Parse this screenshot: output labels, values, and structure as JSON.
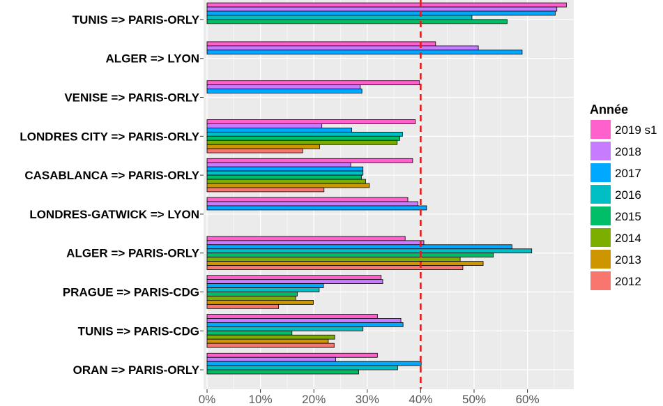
{
  "chart_data": {
    "type": "bar",
    "orientation": "horizontal",
    "categories": [
      "TUNIS => PARIS-ORLY",
      "ALGER => LYON",
      "VENISE => PARIS-ORLY",
      "LONDRES CITY => PARIS-ORLY",
      "CASABLANCA => PARIS-ORLY",
      "LONDRES-GATWICK => LYON",
      "ALGER => PARIS-ORLY",
      "PRAGUE => PARIS-CDG",
      "TUNIS => PARIS-CDG",
      "ORAN => PARIS-ORLY"
    ],
    "series": [
      {
        "name": "2019 s1",
        "color": "#ff61cc",
        "values": [
          67.3,
          42.8,
          39.8,
          39.0,
          38.5,
          37.6,
          37.1,
          32.6,
          31.9,
          31.9
        ]
      },
      {
        "name": "2018",
        "color": "#c77cff",
        "values": [
          65.5,
          50.8,
          28.7,
          21.5,
          26.9,
          39.5,
          40.6,
          32.9,
          36.3,
          24.1
        ]
      },
      {
        "name": "2017",
        "color": "#00a9ff",
        "values": [
          65.2,
          59.0,
          29.0,
          27.1,
          29.2,
          41.1,
          57.1,
          21.8,
          36.7,
          40.1
        ]
      },
      {
        "name": "2016",
        "color": "#00bfc4",
        "values": [
          49.6,
          null,
          null,
          36.6,
          29.2,
          null,
          60.8,
          21.0,
          29.2,
          35.7
        ]
      },
      {
        "name": "2015",
        "color": "#00be67",
        "values": [
          56.2,
          null,
          null,
          36.1,
          28.9,
          null,
          53.6,
          16.9,
          15.9,
          28.4
        ]
      },
      {
        "name": "2014",
        "color": "#7cae00",
        "values": [
          null,
          null,
          null,
          35.6,
          29.7,
          null,
          47.4,
          16.6,
          23.9,
          null
        ]
      },
      {
        "name": "2013",
        "color": "#cd9600",
        "values": [
          null,
          null,
          null,
          21.1,
          30.4,
          null,
          51.7,
          19.9,
          22.7,
          null
        ]
      },
      {
        "name": "2012",
        "color": "#f8766d",
        "values": [
          null,
          null,
          null,
          17.9,
          21.9,
          null,
          47.9,
          13.4,
          23.8,
          null
        ]
      }
    ],
    "x_ticks": [
      "0%",
      "10%",
      "20%",
      "30%",
      "40%",
      "50%",
      "60%"
    ],
    "xlim": [
      0,
      69
    ],
    "reference_line": {
      "value": 40,
      "color": "#e41a1c",
      "style": "dashed"
    },
    "legend": {
      "title": "Année",
      "position": "right"
    },
    "grid": true,
    "panel_background": "#ebebeb"
  }
}
